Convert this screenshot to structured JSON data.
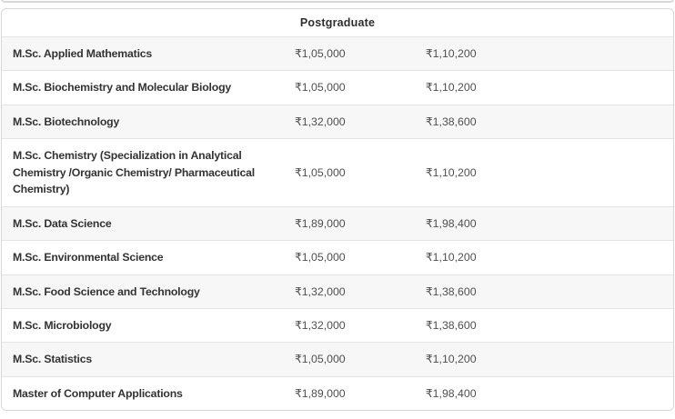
{
  "card": {
    "header": "Postgraduate",
    "rows": [
      {
        "course": "M.Sc. Applied Mathematics",
        "fee_1": "₹1,05,000",
        "fee_2": "₹1,10,200"
      },
      {
        "course": "M.Sc. Biochemistry and Molecular Biology",
        "fee_1": "₹1,05,000",
        "fee_2": "₹1,10,200"
      },
      {
        "course": "M.Sc. Biotechnology",
        "fee_1": "₹1,32,000",
        "fee_2": "₹1,38,600"
      },
      {
        "course": "M.Sc. Chemistry (Specialization in Analytical Chemistry /Organic Chemistry/ Pharmaceutical Chemistry)",
        "fee_1": "₹1,05,000",
        "fee_2": "₹1,10,200"
      },
      {
        "course": "M.Sc. Data Science",
        "fee_1": "₹1,89,000",
        "fee_2": "₹1,98,400"
      },
      {
        "course": "M.Sc. Environmental Science",
        "fee_1": "₹1,05,000",
        "fee_2": "₹1,10,200"
      },
      {
        "course": "M.Sc. Food Science and Technology",
        "fee_1": "₹1,32,000",
        "fee_2": "₹1,38,600"
      },
      {
        "course": "M.Sc. Microbiology",
        "fee_1": "₹1,32,000",
        "fee_2": "₹1,38,600"
      },
      {
        "course": "M.Sc. Statistics",
        "fee_1": "₹1,05,000",
        "fee_2": "₹1,10,200"
      },
      {
        "course": "Master of Computer Applications",
        "fee_1": "₹1,89,000",
        "fee_2": "₹1,98,400"
      }
    ],
    "colors": {
      "row_alt_background": "#f7f7f7",
      "card_border": "#d7d7d7",
      "row_divider": "#e4e4e4",
      "heading_text": "#2e2e2e",
      "course_text": "#333333",
      "fee_text": "#4f4f4f"
    }
  }
}
